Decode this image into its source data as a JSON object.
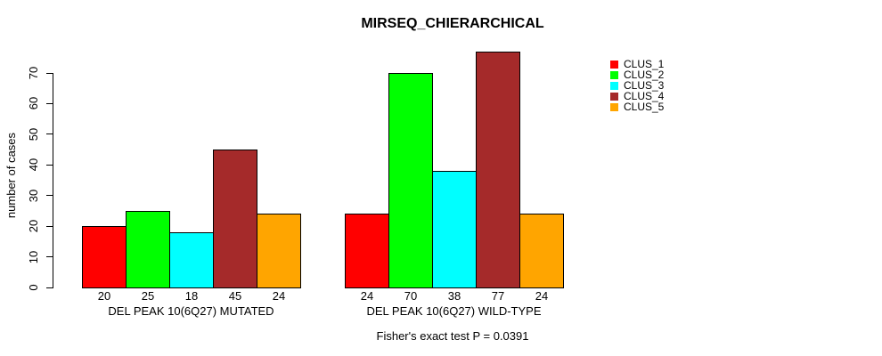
{
  "chart_data": {
    "type": "bar",
    "title": "MIRSEQ_CHIERARCHICAL",
    "ylabel": "number of cases",
    "xlabel": "",
    "ylim": [
      0,
      70
    ],
    "yticks": [
      0,
      10,
      20,
      30,
      40,
      50,
      60,
      70
    ],
    "grid": false,
    "legend_position": "top-right-outside",
    "categories": [
      "DEL PEAK 10(6Q27) MUTATED",
      "DEL PEAK 10(6Q27) WILD-TYPE"
    ],
    "series": [
      {
        "name": "CLUS_1",
        "color": "#FF0000",
        "values": [
          20,
          24
        ]
      },
      {
        "name": "CLUS_2",
        "color": "#00FF00",
        "values": [
          25,
          70
        ]
      },
      {
        "name": "CLUS_3",
        "color": "#00FFFF",
        "values": [
          18,
          38
        ]
      },
      {
        "name": "CLUS_4",
        "color": "#A52A2A",
        "values": [
          45,
          77
        ]
      },
      {
        "name": "CLUS_5",
        "color": "#FFA500",
        "values": [
          24,
          24
        ]
      },
      {
        "note": ""
      }
    ],
    "bar_borders": "#000000",
    "caption": "Fisher's exact test P = 0.0391"
  }
}
